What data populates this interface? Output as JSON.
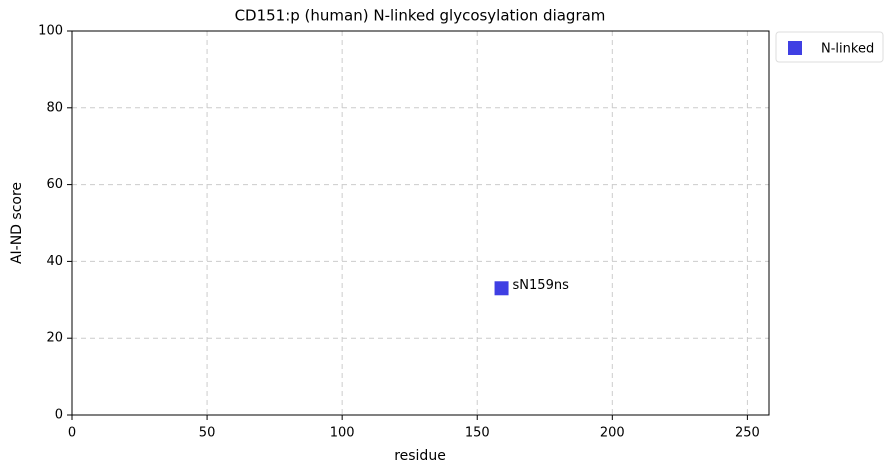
{
  "chart_data": {
    "type": "scatter",
    "title": "CD151:p (human) N-linked glycosylation diagram",
    "xlabel": "residue",
    "ylabel": "AI-ND score",
    "x": [
      159
    ],
    "series": [
      {
        "name": "N-linked",
        "color": "#3f3fe3",
        "values": [
          33
        ],
        "point_labels": [
          "sN159ns"
        ]
      }
    ],
    "xlim": [
      0,
      258
    ],
    "xticks": [
      0,
      50,
      100,
      150,
      200,
      250
    ],
    "ylim": [
      0,
      100
    ],
    "yticks": [
      0,
      20,
      40,
      60,
      80,
      100
    ],
    "grid": true,
    "legend": "outside-right"
  }
}
